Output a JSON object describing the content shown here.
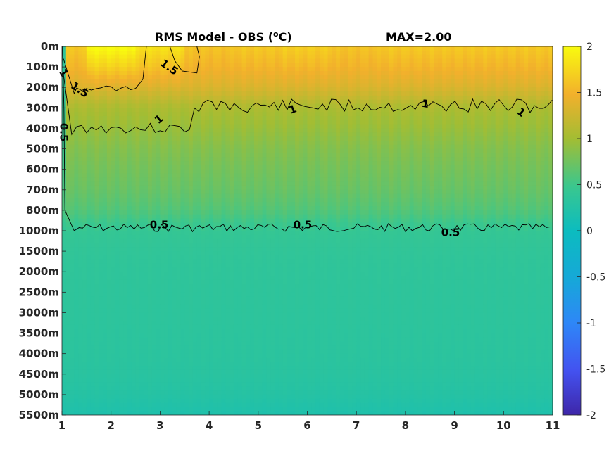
{
  "chart_data": {
    "type": "heatmap",
    "title_left": "RMS Model - OBS (",
    "title_unit_sup": "o",
    "title_unit_rest": "C)",
    "title_right": "MAX=2.00",
    "x": {
      "range": [
        1,
        11
      ],
      "ticks": [
        "1",
        "2",
        "3",
        "4",
        "5",
        "6",
        "7",
        "8",
        "9",
        "10",
        "11"
      ]
    },
    "y": {
      "ticks": [
        "0m",
        "100m",
        "200m",
        "300m",
        "400m",
        "500m",
        "600m",
        "700m",
        "800m",
        "1000m",
        "1500m",
        "2000m",
        "2500m",
        "3000m",
        "3500m",
        "4000m",
        "4500m",
        "5000m",
        "5500m"
      ]
    },
    "colorbar": {
      "range": [
        -2,
        2
      ],
      "ticks": [
        "2",
        "1.5",
        "1",
        "0.5",
        "0",
        "-0.5",
        "-1",
        "-1.5",
        "-2"
      ]
    },
    "field": {
      "note_depth_index_profile_values": [
        1.7,
        1.55,
        1.35,
        1.05,
        0.95,
        0.85,
        0.78,
        0.72,
        0.62,
        0.44,
        0.4,
        0.38,
        0.37,
        0.36,
        0.35,
        0.34,
        0.32,
        0.28,
        0.2
      ],
      "surface_max_columns": [
        1.5,
        2.0,
        1.75,
        1.45,
        1.5,
        1.55,
        1.45,
        1.5,
        1.5,
        1.5,
        1.5
      ]
    },
    "contours": [
      {
        "level": 1.5,
        "labels": [
          "1.5",
          "1.5"
        ]
      },
      {
        "level": 1,
        "labels": [
          "1",
          "1",
          "1",
          "1",
          "1"
        ]
      },
      {
        "level": 0.5,
        "labels": [
          "0.5",
          "0.5",
          "0.5",
          "0.5"
        ]
      }
    ]
  }
}
